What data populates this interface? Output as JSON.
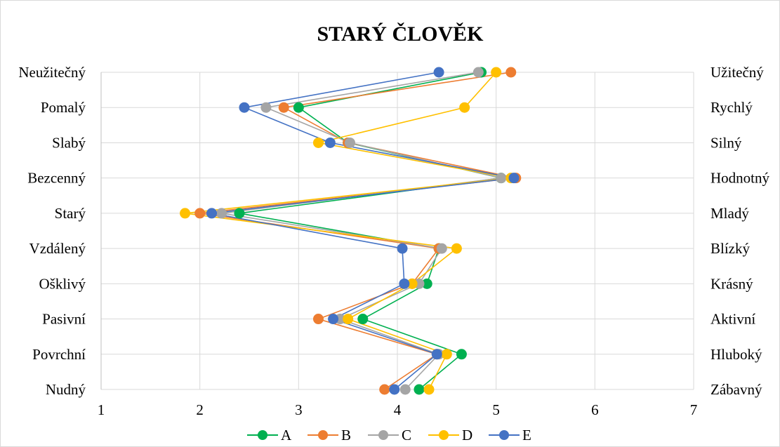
{
  "chart_data": {
    "type": "line",
    "title": "STARÝ ČLOVĚK",
    "left_labels": [
      "Neužitečný",
      "Pomalý",
      "Slabý",
      "Bezcenný",
      "Starý",
      "Vzdálený",
      "Ošklivý",
      "Pasivní",
      "Povrchní",
      "Nudný"
    ],
    "right_labels": [
      "Užitečný",
      "Rychlý",
      "Silný",
      "Hodnotný",
      "Mladý",
      "Blízký",
      "Krásný",
      "Aktivní",
      "Hluboký",
      "Zábavný"
    ],
    "xlim": [
      1,
      7
    ],
    "x_ticks": [
      "1",
      "2",
      "3",
      "4",
      "5",
      "6",
      "7"
    ],
    "grid": true,
    "legend_position": "bottom",
    "series": [
      {
        "name": "A",
        "color": "#00b050",
        "values": [
          4.85,
          3.0,
          3.5,
          5.05,
          2.4,
          4.42,
          4.3,
          3.65,
          4.65,
          4.22
        ]
      },
      {
        "name": "B",
        "color": "#ed7d31",
        "values": [
          5.15,
          2.85,
          3.5,
          5.2,
          2.0,
          4.42,
          4.15,
          3.2,
          4.4,
          3.87
        ]
      },
      {
        "name": "C",
        "color": "#a5a5a5",
        "values": [
          4.82,
          2.67,
          3.52,
          5.05,
          2.22,
          4.45,
          4.22,
          3.42,
          4.42,
          4.08
        ]
      },
      {
        "name": "D",
        "color": "#ffc000",
        "values": [
          5.0,
          4.68,
          3.2,
          5.15,
          1.85,
          4.6,
          4.15,
          3.5,
          4.5,
          4.32
        ]
      },
      {
        "name": "E",
        "color": "#4472c4",
        "values": [
          4.42,
          2.45,
          3.32,
          5.18,
          2.12,
          4.05,
          4.07,
          3.35,
          4.4,
          3.97
        ]
      }
    ]
  }
}
